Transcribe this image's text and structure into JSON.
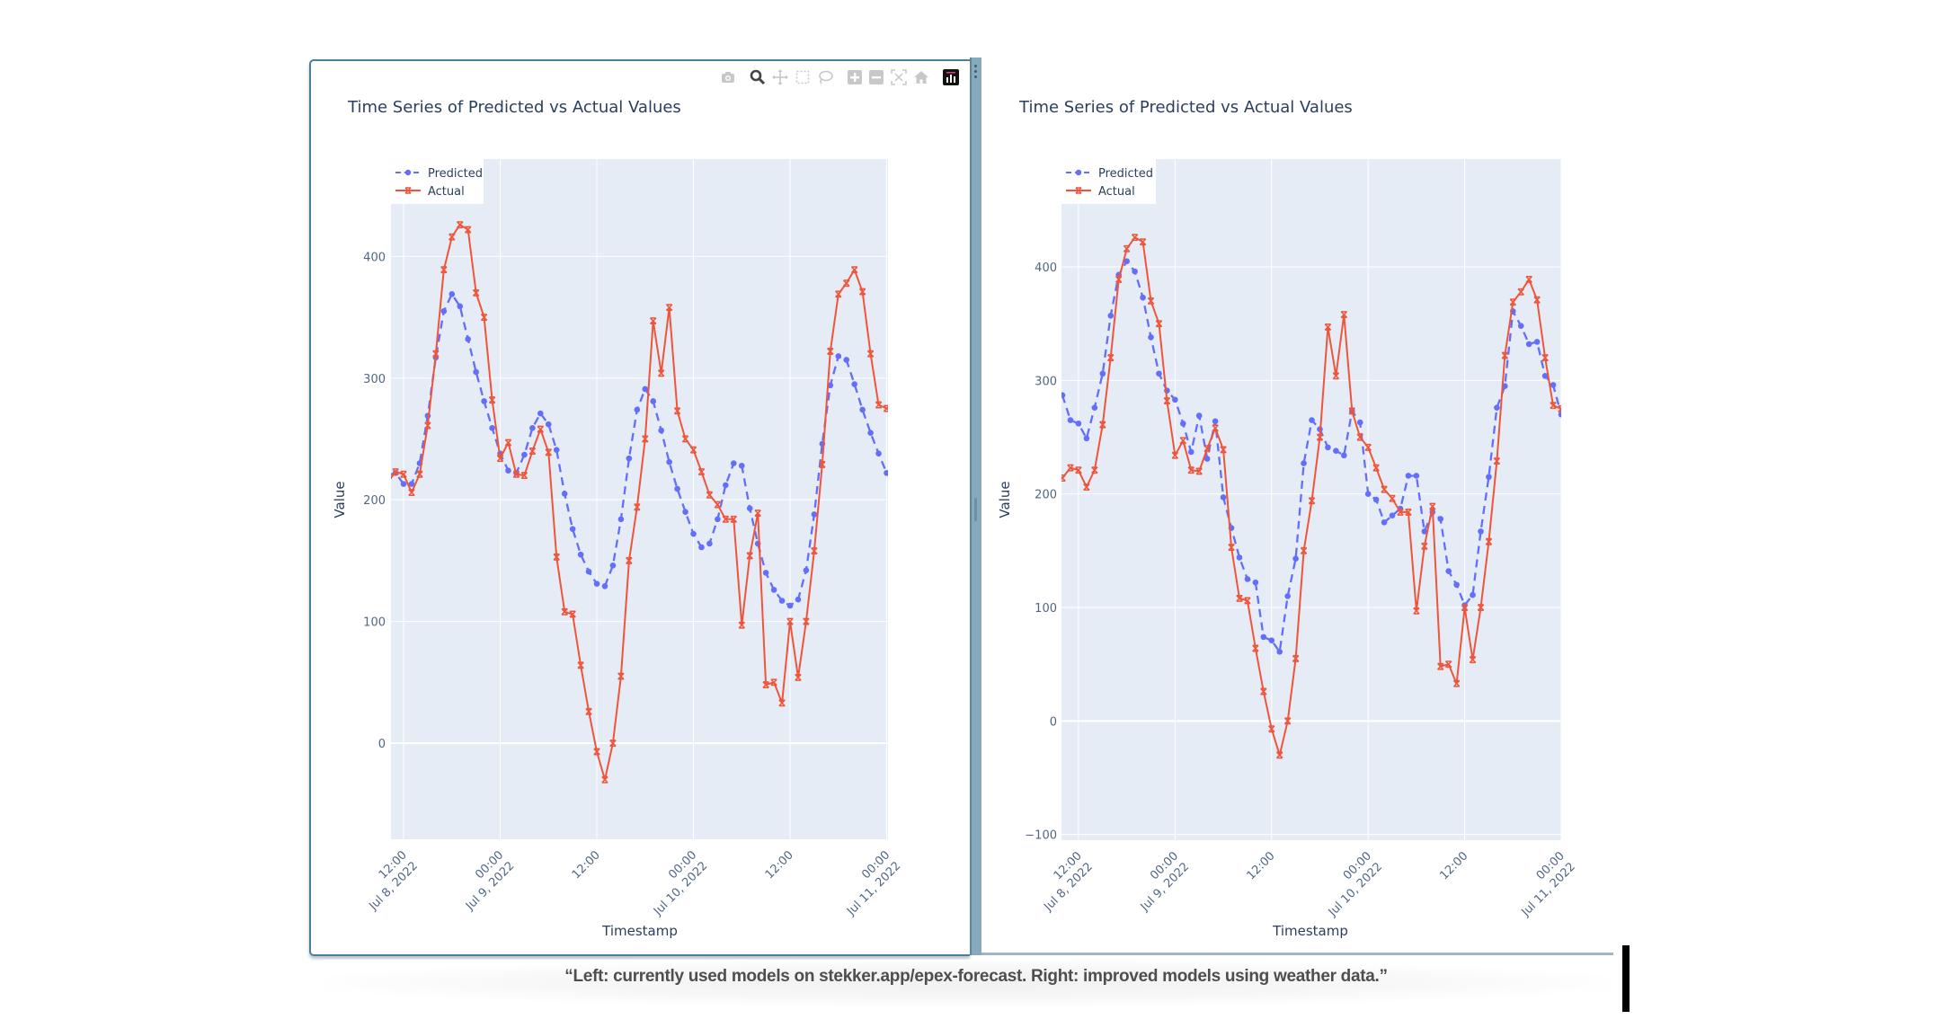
{
  "modebar": {
    "icons": [
      "camera-icon",
      "zoom-icon",
      "pan-icon",
      "box-select-icon",
      "lasso-select-icon",
      "zoom-in-icon",
      "zoom-out-icon",
      "autoscale-icon",
      "reset-axes-home-icon",
      "plotly-logo-icon"
    ],
    "active": "zoom-icon"
  },
  "caption": {
    "text": "“Left: currently used models on stekker.app/epex-forecast. Right: improved models using weather data.”"
  },
  "colors": {
    "predicted": "#636efa",
    "actual": "#EF553B",
    "plot_bg": "#E5ECF6",
    "grid": "#ffffff",
    "panel_border": "#4d7e9a"
  },
  "chart_data": [
    {
      "type": "line",
      "title": "Time Series of Predicted vs Actual Values",
      "xlabel": "Timestamp",
      "ylabel": "Value",
      "legend_position": "top-left",
      "grid": true,
      "x_range": [
        "2022-07-08 10:26",
        "2022-07-11 00:10"
      ],
      "y_range": [
        -79,
        480
      ],
      "y_ticks": [
        0,
        100,
        200,
        300,
        400
      ],
      "y_tick_labels": [
        "0",
        "100",
        "200",
        "300",
        "400"
      ],
      "x_ticks": [
        {
          "value": "2022-07-08 12:00",
          "line1": "12:00",
          "line2": "Jul 8, 2022"
        },
        {
          "value": "2022-07-09 00:00",
          "line1": "00:00",
          "line2": "Jul 9, 2022"
        },
        {
          "value": "2022-07-09 12:00",
          "line1": "12:00",
          "line2": ""
        },
        {
          "value": "2022-07-10 00:00",
          "line1": "00:00",
          "line2": "Jul 10, 2022"
        },
        {
          "value": "2022-07-10 12:00",
          "line1": "12:00",
          "line2": ""
        },
        {
          "value": "2022-07-11 00:00",
          "line1": "00:00",
          "line2": "Jul 11, 2022"
        }
      ],
      "x": [
        "2022-07-08 10:00",
        "2022-07-08 11:00",
        "2022-07-08 12:00",
        "2022-07-08 13:00",
        "2022-07-08 14:00",
        "2022-07-08 15:00",
        "2022-07-08 16:00",
        "2022-07-08 17:00",
        "2022-07-08 18:00",
        "2022-07-08 19:00",
        "2022-07-08 20:00",
        "2022-07-08 21:00",
        "2022-07-08 22:00",
        "2022-07-08 23:00",
        "2022-07-09 00:00",
        "2022-07-09 01:00",
        "2022-07-09 02:00",
        "2022-07-09 03:00",
        "2022-07-09 04:00",
        "2022-07-09 05:00",
        "2022-07-09 06:00",
        "2022-07-09 07:00",
        "2022-07-09 08:00",
        "2022-07-09 09:00",
        "2022-07-09 10:00",
        "2022-07-09 11:00",
        "2022-07-09 12:00",
        "2022-07-09 13:00",
        "2022-07-09 14:00",
        "2022-07-09 15:00",
        "2022-07-09 16:00",
        "2022-07-09 17:00",
        "2022-07-09 18:00",
        "2022-07-09 19:00",
        "2022-07-09 20:00",
        "2022-07-09 21:00",
        "2022-07-09 22:00",
        "2022-07-09 23:00",
        "2022-07-10 00:00",
        "2022-07-10 01:00",
        "2022-07-10 02:00",
        "2022-07-10 03:00",
        "2022-07-10 04:00",
        "2022-07-10 05:00",
        "2022-07-10 06:00",
        "2022-07-10 07:00",
        "2022-07-10 08:00",
        "2022-07-10 09:00",
        "2022-07-10 10:00",
        "2022-07-10 11:00",
        "2022-07-10 12:00",
        "2022-07-10 13:00",
        "2022-07-10 14:00",
        "2022-07-10 15:00",
        "2022-07-10 16:00",
        "2022-07-10 17:00",
        "2022-07-10 18:00",
        "2022-07-10 19:00",
        "2022-07-10 20:00",
        "2022-07-10 21:00",
        "2022-07-10 22:00",
        "2022-07-10 23:00",
        "2022-07-11 00:00"
      ],
      "series": [
        {
          "name": "Predicted",
          "style": "dashed",
          "marker": "circle",
          "color": "#636efa",
          "values": [
            220,
            222,
            213,
            213,
            230,
            269,
            317,
            355,
            369,
            359,
            332,
            305,
            281,
            259,
            238,
            224,
            222,
            237,
            259,
            271,
            262,
            241,
            205,
            176,
            155,
            141,
            131,
            129,
            146,
            184,
            234,
            274,
            291,
            281,
            257,
            231,
            209,
            190,
            172,
            161,
            164,
            184,
            212,
            230,
            228,
            193,
            164,
            140,
            126,
            117,
            113,
            118,
            142,
            188,
            246,
            294,
            318,
            315,
            295,
            274,
            255,
            238,
            222
          ]
        },
        {
          "name": "Actual",
          "style": "solid",
          "marker": "x",
          "color": "#EF553B",
          "values": [
            214,
            223,
            221,
            206,
            221,
            261,
            320,
            389,
            416,
            426,
            422,
            370,
            350,
            282,
            234,
            247,
            221,
            220,
            240,
            258,
            239,
            153,
            108,
            106,
            64,
            26,
            -7,
            -30,
            0,
            55,
            150,
            194,
            250,
            347,
            304,
            358,
            273,
            250,
            241,
            223,
            204,
            196,
            184,
            184,
            97,
            154,
            189,
            48,
            50,
            33,
            100,
            54,
            100,
            158,
            229,
            322,
            369,
            378,
            389,
            371,
            320,
            278,
            275
          ]
        }
      ]
    },
    {
      "type": "line",
      "title": "Time Series of Predicted vs Actual Values",
      "xlabel": "Timestamp",
      "ylabel": "Value",
      "legend_position": "top-left",
      "grid": true,
      "x_range": [
        "2022-07-08 09:53",
        "2022-07-11 00:00"
      ],
      "y_range": [
        -105,
        495
      ],
      "y_ticks": [
        -100,
        0,
        100,
        200,
        300,
        400
      ],
      "y_tick_labels": [
        "−100",
        "0",
        "100",
        "200",
        "300",
        "400"
      ],
      "x_ticks": [
        {
          "value": "2022-07-08 12:00",
          "line1": "12:00",
          "line2": "Jul 8, 2022"
        },
        {
          "value": "2022-07-09 00:00",
          "line1": "00:00",
          "line2": "Jul 9, 2022"
        },
        {
          "value": "2022-07-09 12:00",
          "line1": "12:00",
          "line2": ""
        },
        {
          "value": "2022-07-10 00:00",
          "line1": "00:00",
          "line2": "Jul 10, 2022"
        },
        {
          "value": "2022-07-10 12:00",
          "line1": "12:00",
          "line2": ""
        },
        {
          "value": "2022-07-11 00:00",
          "line1": "00:00",
          "line2": "Jul 11, 2022"
        }
      ],
      "x": [
        "2022-07-08 10:00",
        "2022-07-08 11:00",
        "2022-07-08 12:00",
        "2022-07-08 13:00",
        "2022-07-08 14:00",
        "2022-07-08 15:00",
        "2022-07-08 16:00",
        "2022-07-08 17:00",
        "2022-07-08 18:00",
        "2022-07-08 19:00",
        "2022-07-08 20:00",
        "2022-07-08 21:00",
        "2022-07-08 22:00",
        "2022-07-08 23:00",
        "2022-07-09 00:00",
        "2022-07-09 01:00",
        "2022-07-09 02:00",
        "2022-07-09 03:00",
        "2022-07-09 04:00",
        "2022-07-09 05:00",
        "2022-07-09 06:00",
        "2022-07-09 07:00",
        "2022-07-09 08:00",
        "2022-07-09 09:00",
        "2022-07-09 10:00",
        "2022-07-09 11:00",
        "2022-07-09 12:00",
        "2022-07-09 13:00",
        "2022-07-09 14:00",
        "2022-07-09 15:00",
        "2022-07-09 16:00",
        "2022-07-09 17:00",
        "2022-07-09 18:00",
        "2022-07-09 19:00",
        "2022-07-09 20:00",
        "2022-07-09 21:00",
        "2022-07-09 22:00",
        "2022-07-09 23:00",
        "2022-07-10 00:00",
        "2022-07-10 01:00",
        "2022-07-10 02:00",
        "2022-07-10 03:00",
        "2022-07-10 04:00",
        "2022-07-10 05:00",
        "2022-07-10 06:00",
        "2022-07-10 07:00",
        "2022-07-10 08:00",
        "2022-07-10 09:00",
        "2022-07-10 10:00",
        "2022-07-10 11:00",
        "2022-07-10 12:00",
        "2022-07-10 13:00",
        "2022-07-10 14:00",
        "2022-07-10 15:00",
        "2022-07-10 16:00",
        "2022-07-10 17:00",
        "2022-07-10 18:00",
        "2022-07-10 19:00",
        "2022-07-10 20:00",
        "2022-07-10 21:00",
        "2022-07-10 22:00",
        "2022-07-10 23:00",
        "2022-07-11 00:00"
      ],
      "series": [
        {
          "name": "Predicted",
          "style": "dashed",
          "marker": "circle",
          "color": "#636efa",
          "values": [
            287,
            265,
            262,
            249,
            276,
            306,
            357,
            393,
            405,
            396,
            373,
            338,
            306,
            291,
            283,
            262,
            237,
            269,
            231,
            264,
            197,
            170,
            144,
            125,
            122,
            74,
            71,
            61,
            110,
            143,
            227,
            265,
            257,
            241,
            238,
            234,
            273,
            263,
            200,
            195,
            175,
            181,
            187,
            216,
            216,
            167,
            184,
            178,
            132,
            120,
            102,
            111,
            167,
            215,
            276,
            295,
            361,
            348,
            332,
            334,
            304,
            296,
            270
          ]
        },
        {
          "name": "Actual",
          "style": "solid",
          "marker": "x",
          "color": "#EF553B",
          "values": [
            214,
            223,
            221,
            206,
            221,
            261,
            320,
            389,
            416,
            426,
            422,
            370,
            350,
            282,
            234,
            247,
            221,
            220,
            240,
            258,
            239,
            153,
            108,
            106,
            64,
            26,
            -7,
            -30,
            0,
            55,
            150,
            194,
            250,
            347,
            304,
            358,
            273,
            250,
            241,
            223,
            204,
            196,
            184,
            184,
            97,
            154,
            189,
            48,
            50,
            33,
            100,
            54,
            100,
            158,
            229,
            322,
            369,
            378,
            389,
            371,
            320,
            278,
            275
          ]
        }
      ]
    }
  ]
}
